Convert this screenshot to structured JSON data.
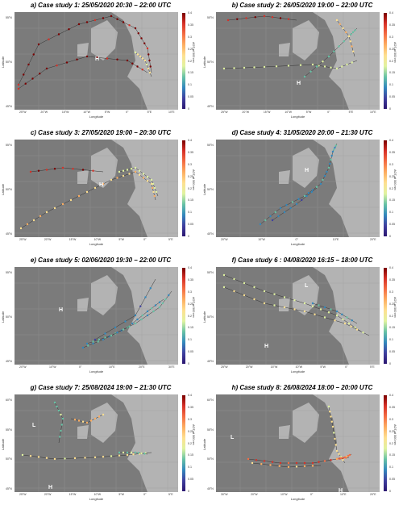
{
  "panels": [
    {
      "title": "a) Case study 1: 25/05/2020 20:30 – 22:00 UTC",
      "lat_ticks": [
        "55°N",
        "50°N",
        "45°N"
      ],
      "lon_ticks": [
        "25°W",
        "20°W",
        "15°W",
        "10°W",
        "5°W",
        "0°",
        "5°E",
        "10°E"
      ],
      "markers": [
        {
          "type": "H",
          "label": "H"
        }
      ]
    },
    {
      "title": "b) Case study 2: 26/05/2020 19:00 – 22:00 UTC",
      "lat_ticks": [
        "55°N",
        "50°N",
        "45°N"
      ],
      "lon_ticks": [
        "25°W",
        "20°W",
        "15°W",
        "10°W",
        "5°W",
        "0°",
        "5°E",
        "10°E"
      ],
      "markers": [
        {
          "type": "H",
          "label": "H"
        }
      ]
    },
    {
      "title": "c) Case study 3: 27/05/2020 19:00 – 20:30 UTC",
      "lat_ticks": [
        "55°N",
        "50°N",
        "45°N"
      ],
      "lon_ticks": [
        "25°W",
        "20°W",
        "15°W",
        "10°W",
        "5°W",
        "0°",
        "5°E"
      ],
      "markers": [
        {
          "type": "H",
          "label": "H"
        }
      ]
    },
    {
      "title": "d) Case study 4: 31/05/2020 20:00 – 21:30 UTC",
      "lat_ticks": [
        "55°N",
        "50°N",
        "45°N"
      ],
      "lon_ticks": [
        "20°W",
        "10°W",
        "0°",
        "10°E",
        "20°E"
      ],
      "markers": [
        {
          "type": "H",
          "label": "H"
        }
      ]
    },
    {
      "title": "e) Case study 5: 02/06/2020 19:30 – 22:00 UTC",
      "lat_ticks": [
        "55°N",
        "50°N",
        "45°N"
      ],
      "lon_ticks": [
        "20°W",
        "10°W",
        "0°",
        "10°E",
        "20°E",
        "30°E"
      ],
      "markers": [
        {
          "type": "H",
          "label": "H"
        }
      ]
    },
    {
      "title": "f) Case study 6 : 04/08/2020 16:15 – 18:00 UTC",
      "lat_ticks": [
        "55°N",
        "50°N",
        "45°N"
      ],
      "lon_ticks": [
        "25°W",
        "20°W",
        "15°W",
        "10°W",
        "5°W",
        "0°",
        "5°E"
      ],
      "markers": [
        {
          "type": "L",
          "label": "L"
        },
        {
          "type": "H",
          "label": "H"
        }
      ]
    },
    {
      "title": "g) Case study 7: 25/08/2024 19:00 – 21:30 UTC",
      "lat_ticks": [
        "60°N",
        "55°N",
        "50°N",
        "45°N"
      ],
      "lon_ticks": [
        "25°W",
        "20°W",
        "15°W",
        "10°W",
        "5°W",
        "0°",
        "5°E"
      ],
      "markers": [
        {
          "type": "L",
          "label": "L"
        },
        {
          "type": "H",
          "label": "H"
        }
      ]
    },
    {
      "title": "h) Case study 8: 26/08/2024 18:00 – 20:00 UTC",
      "lat_ticks": [
        "60°N",
        "55°N",
        "50°N",
        "45°N"
      ],
      "lon_ticks": [
        "30°W",
        "20°W",
        "10°W",
        "0°",
        "10°E",
        "20°E"
      ],
      "markers": [
        {
          "type": "L",
          "label": "L"
        },
        {
          "type": "H",
          "label": "H"
        }
      ]
    }
  ],
  "axis": {
    "xlabel": "Longitude",
    "ylabel": "Latitude"
  },
  "colorbar": {
    "label": "AOT at 500 nm",
    "ticks": [
      "0.4",
      "0.35",
      "0.3",
      "0.25",
      "0.2",
      "0.15",
      "0.1",
      "0.05",
      "0"
    ]
  },
  "colors": {
    "map_bg": "#7b7b7b",
    "land": "#bdbdbd",
    "sea": "#6e6e6e"
  }
}
